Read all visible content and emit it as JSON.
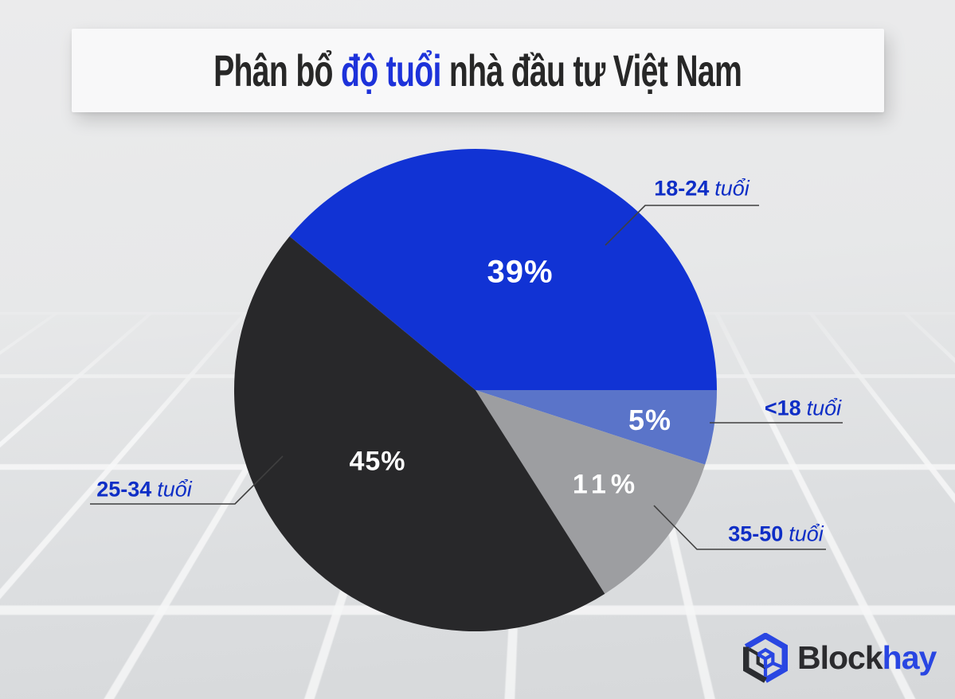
{
  "title": {
    "prefix": "Phân bổ ",
    "highlight": "độ tuổi",
    "suffix": " nhà đầu tư Việt Nam"
  },
  "chart_data": {
    "type": "pie",
    "title": "Phân bổ độ tuổi nhà đầu tư Việt Nam",
    "start_angle_deg": 140.4,
    "direction": "clockwise",
    "legend_position": "callout-labels",
    "slices": [
      {
        "label": "18-24 tuổi",
        "label_range": "18-24",
        "label_unit": "tuổi",
        "value": 39,
        "value_label": "39%",
        "color": "#1133d4"
      },
      {
        "label": "<18 tuổi",
        "label_range": "<18",
        "label_unit": "tuổi",
        "value": 5,
        "value_label": "5%",
        "color": "#5a74c9"
      },
      {
        "label": "35-50 tuổi",
        "label_range": "35-50",
        "label_unit": "tuổi",
        "value": 11,
        "value_label": "11%",
        "color": "#9d9ea1"
      },
      {
        "label": "25-34 tuổi",
        "label_range": "25-34",
        "label_unit": "tuổi",
        "value": 45,
        "value_label": "45%",
        "color": "#28282a"
      }
    ]
  },
  "branding": {
    "logo_icon": "cube-icon",
    "logo_text_dark": "Block",
    "logo_text_accent": "hay"
  },
  "colors": {
    "accent_blue": "#1133d4",
    "light_blue": "#5a74c9",
    "gray": "#9d9ea1",
    "dark": "#28282a",
    "callout_label_blue": "#0e2ec6",
    "title_highlight_blue": "#1d32da",
    "logo_blue": "#2946e2",
    "leader_line": "#3f3f3f"
  }
}
